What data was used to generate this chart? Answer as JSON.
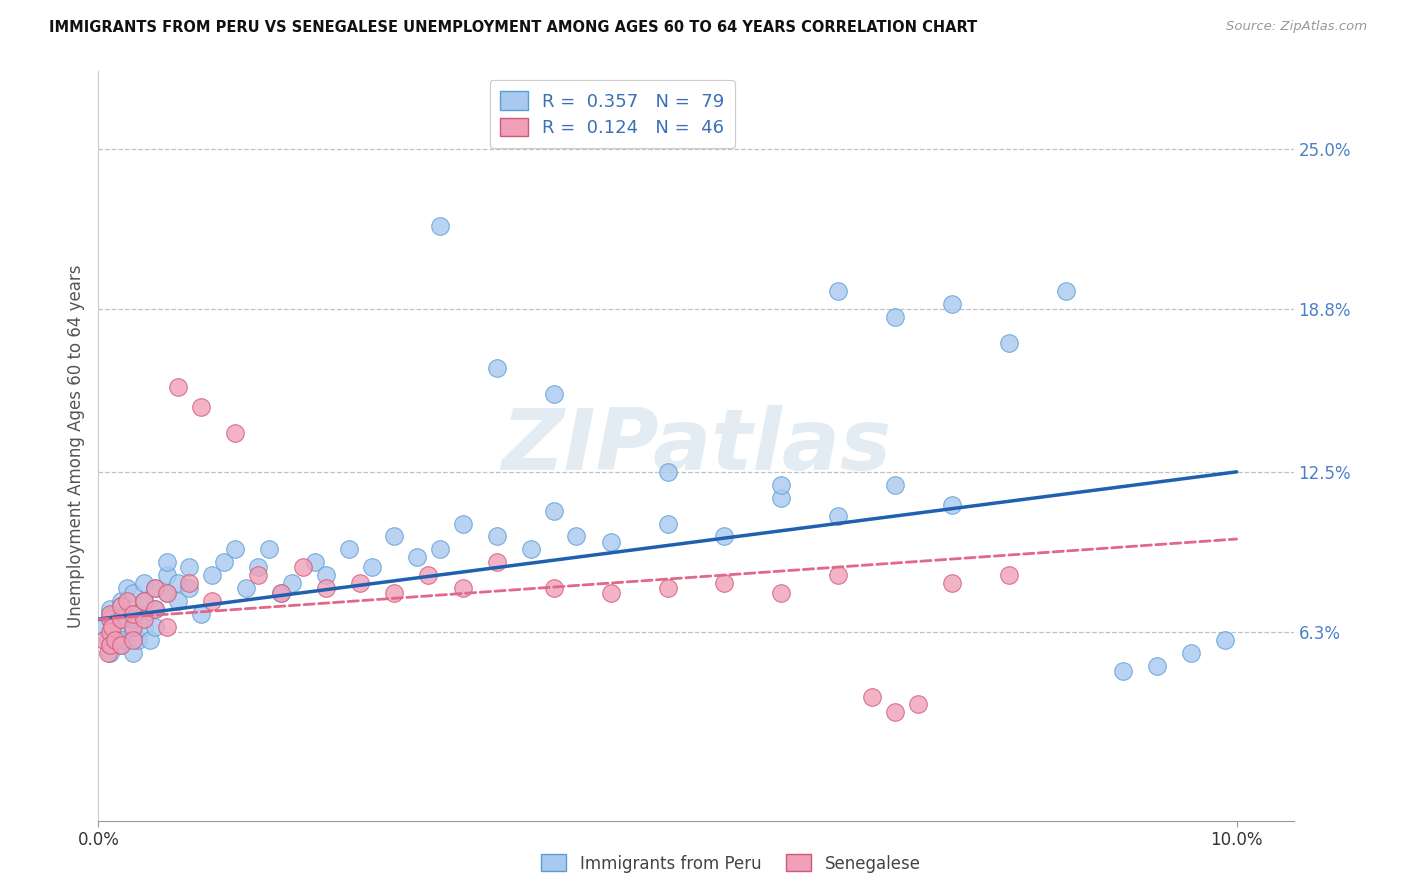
{
  "title": "IMMIGRANTS FROM PERU VS SENEGALESE UNEMPLOYMENT AMONG AGES 60 TO 64 YEARS CORRELATION CHART",
  "source": "Source: ZipAtlas.com",
  "ylabel": "Unemployment Among Ages 60 to 64 years",
  "xlim": [
    0.0,
    0.105
  ],
  "ylim": [
    -0.01,
    0.28
  ],
  "xtick_vals": [
    0.0,
    0.1
  ],
  "xticklabels": [
    "0.0%",
    "10.0%"
  ],
  "ytick_vals": [
    0.063,
    0.125,
    0.188,
    0.25
  ],
  "ytick_labels": [
    "6.3%",
    "12.5%",
    "18.8%",
    "25.0%"
  ],
  "series1_label": "Immigrants from Peru",
  "series1_color": "#aac9f0",
  "series1_edge": "#5a9fd4",
  "series1_R": "0.357",
  "series1_N": "79",
  "series1_line_color": "#2060b0",
  "series2_label": "Senegalese",
  "series2_color": "#f0a0b8",
  "series2_edge": "#d05878",
  "series2_R": "0.124",
  "series2_N": "46",
  "series2_line_color": "#e06888",
  "watermark": "ZIPatlas",
  "bg_color": "#ffffff",
  "grid_color": "#bbbbbb",
  "blue_trend_x0": 0.0,
  "blue_trend_y0": 0.068,
  "blue_trend_x1": 0.1,
  "blue_trend_y1": 0.125,
  "pink_trend_x0": 0.0,
  "pink_trend_y0": 0.068,
  "pink_trend_x1": 0.1,
  "pink_trend_y1": 0.099,
  "peru_x": [
    0.0005,
    0.0008,
    0.001,
    0.001,
    0.001,
    0.001,
    0.001,
    0.0012,
    0.0015,
    0.002,
    0.002,
    0.002,
    0.002,
    0.002,
    0.0022,
    0.0025,
    0.003,
    0.003,
    0.003,
    0.003,
    0.003,
    0.0035,
    0.004,
    0.004,
    0.004,
    0.004,
    0.0045,
    0.005,
    0.005,
    0.005,
    0.006,
    0.006,
    0.006,
    0.007,
    0.007,
    0.008,
    0.008,
    0.009,
    0.01,
    0.011,
    0.012,
    0.013,
    0.014,
    0.015,
    0.016,
    0.017,
    0.019,
    0.02,
    0.022,
    0.024,
    0.026,
    0.028,
    0.03,
    0.032,
    0.035,
    0.038,
    0.04,
    0.042,
    0.045,
    0.05,
    0.055,
    0.06,
    0.065,
    0.07,
    0.075,
    0.03,
    0.035,
    0.04,
    0.05,
    0.06,
    0.065,
    0.07,
    0.075,
    0.08,
    0.085,
    0.09,
    0.093,
    0.096,
    0.099
  ],
  "peru_y": [
    0.065,
    0.06,
    0.07,
    0.055,
    0.068,
    0.058,
    0.072,
    0.063,
    0.07,
    0.065,
    0.058,
    0.075,
    0.068,
    0.073,
    0.06,
    0.08,
    0.063,
    0.07,
    0.055,
    0.068,
    0.078,
    0.06,
    0.082,
    0.07,
    0.075,
    0.065,
    0.06,
    0.072,
    0.08,
    0.065,
    0.078,
    0.085,
    0.09,
    0.075,
    0.082,
    0.08,
    0.088,
    0.07,
    0.085,
    0.09,
    0.095,
    0.08,
    0.088,
    0.095,
    0.078,
    0.082,
    0.09,
    0.085,
    0.095,
    0.088,
    0.1,
    0.092,
    0.095,
    0.105,
    0.1,
    0.095,
    0.11,
    0.1,
    0.098,
    0.105,
    0.1,
    0.115,
    0.108,
    0.12,
    0.112,
    0.22,
    0.165,
    0.155,
    0.125,
    0.12,
    0.195,
    0.185,
    0.19,
    0.175,
    0.195,
    0.048,
    0.05,
    0.055,
    0.06
  ],
  "senegal_x": [
    0.0005,
    0.0008,
    0.001,
    0.001,
    0.001,
    0.001,
    0.0012,
    0.0015,
    0.002,
    0.002,
    0.002,
    0.0025,
    0.003,
    0.003,
    0.003,
    0.004,
    0.004,
    0.005,
    0.005,
    0.006,
    0.006,
    0.007,
    0.008,
    0.009,
    0.01,
    0.012,
    0.014,
    0.016,
    0.018,
    0.02,
    0.023,
    0.026,
    0.029,
    0.032,
    0.035,
    0.04,
    0.045,
    0.05,
    0.055,
    0.06,
    0.065,
    0.068,
    0.07,
    0.072,
    0.075,
    0.08
  ],
  "senegal_y": [
    0.06,
    0.055,
    0.068,
    0.063,
    0.058,
    0.07,
    0.065,
    0.06,
    0.068,
    0.073,
    0.058,
    0.075,
    0.065,
    0.07,
    0.06,
    0.075,
    0.068,
    0.072,
    0.08,
    0.065,
    0.078,
    0.158,
    0.082,
    0.15,
    0.075,
    0.14,
    0.085,
    0.078,
    0.088,
    0.08,
    0.082,
    0.078,
    0.085,
    0.08,
    0.09,
    0.08,
    0.078,
    0.08,
    0.082,
    0.078,
    0.085,
    0.038,
    0.032,
    0.035,
    0.082,
    0.085
  ]
}
